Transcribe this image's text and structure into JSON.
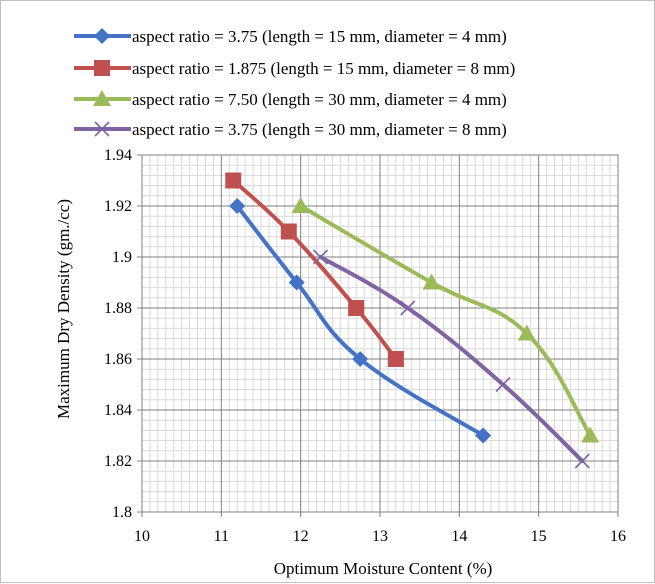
{
  "chart_data": {
    "type": "line",
    "title": "",
    "xlabel": "Optimum Moisture Content (%)",
    "ylabel": "Maximum Dry Density (gm./cc)",
    "xlim": [
      10,
      16
    ],
    "ylim": [
      1.8,
      1.94
    ],
    "xticks": [
      "10",
      "11",
      "12",
      "13",
      "14",
      "15",
      "16"
    ],
    "yticks": [
      "1.8",
      "1.82",
      "1.84",
      "1.86",
      "1.88",
      "1.9",
      "1.92",
      "1.94"
    ],
    "grid": true,
    "legend_position": "top",
    "series": [
      {
        "name": "aspect ratio = 3.75 (length = 15 mm, diameter = 4 mm)",
        "color": "#4472c4",
        "marker": "diamond",
        "x": [
          11.2,
          11.95,
          12.75,
          14.3
        ],
        "y": [
          1.92,
          1.89,
          1.86,
          1.83
        ]
      },
      {
        "name": "aspect ratio = 1.875 (length = 15 mm, diameter = 8 mm)",
        "color": "#c0504d",
        "marker": "square",
        "x": [
          11.15,
          11.85,
          12.7,
          13.2
        ],
        "y": [
          1.93,
          1.91,
          1.88,
          1.86
        ]
      },
      {
        "name": "aspect ratio = 7.50 (length = 30 mm, diameter = 4 mm)",
        "color": "#9bbb59",
        "marker": "triangle",
        "x": [
          12.0,
          13.65,
          14.85,
          15.65
        ],
        "y": [
          1.92,
          1.89,
          1.87,
          1.83
        ]
      },
      {
        "name": "aspect ratio = 3.75 (length = 30 mm, diameter = 8 mm)",
        "color": "#7f63a2",
        "marker": "x",
        "x": [
          12.25,
          13.35,
          14.55,
          15.55
        ],
        "y": [
          1.9,
          1.88,
          1.85,
          1.82
        ]
      }
    ]
  }
}
